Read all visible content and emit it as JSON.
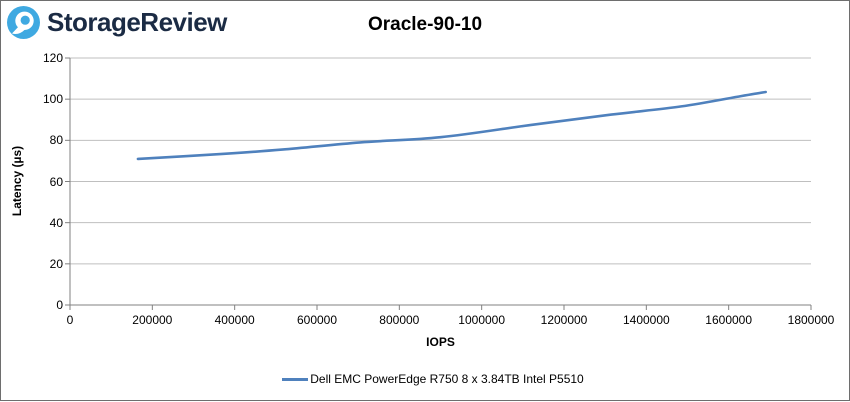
{
  "header": {
    "brand": "StorageReview"
  },
  "colors": {
    "series_line": "#4F81BD",
    "gridline": "#bfbfbf",
    "axis": "#808080",
    "logo_blue": "#3fa9e1",
    "brand_navy": "#1b2b44",
    "page_border": "#6e6e6e"
  },
  "chart_data": {
    "type": "line",
    "title": "Oracle-90-10",
    "xlabel": "IOPS",
    "ylabel": "Latency (µs)",
    "xlim": [
      0,
      1800000
    ],
    "ylim": [
      0,
      120
    ],
    "grid": "horizontal",
    "legend_position": "bottom",
    "x_axis": {
      "tick_values": [
        0,
        200000,
        400000,
        600000,
        800000,
        1000000,
        1200000,
        1400000,
        1600000,
        1800000
      ],
      "tick_labels": [
        "0",
        "200000",
        "400000",
        "600000",
        "800000",
        "1000000",
        "1200000",
        "1400000",
        "1600000",
        "1800000"
      ]
    },
    "y_axis": {
      "tick_values": [
        0,
        20,
        40,
        60,
        80,
        100,
        120
      ],
      "tick_labels": [
        "0",
        "20",
        "40",
        "60",
        "80",
        "100",
        "120"
      ]
    },
    "series": [
      {
        "name": "Dell EMC PowerEdge R750 8 x 3.84TB Intel P5510",
        "color": "#4F81BD",
        "smooth": true,
        "points": [
          {
            "x": 165000,
            "y": 71
          },
          {
            "x": 340000,
            "y": 73
          },
          {
            "x": 515000,
            "y": 75.5
          },
          {
            "x": 705000,
            "y": 79
          },
          {
            "x": 900000,
            "y": 81.5
          },
          {
            "x": 1120000,
            "y": 87.5
          },
          {
            "x": 1315000,
            "y": 92.5
          },
          {
            "x": 1485000,
            "y": 96.5
          },
          {
            "x": 1630000,
            "y": 101.5
          },
          {
            "x": 1690000,
            "y": 103.5
          }
        ]
      }
    ]
  }
}
